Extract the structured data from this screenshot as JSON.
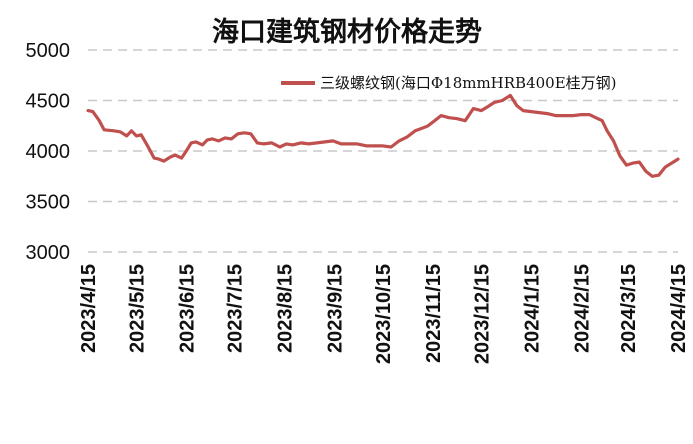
{
  "chart_data": {
    "type": "line",
    "title": "海口建筑钢材价格走势",
    "xlabel": "",
    "ylabel": "",
    "ylim": [
      3000,
      5000
    ],
    "yticks": [
      3000,
      3500,
      4000,
      4500,
      5000
    ],
    "xticks": [
      "2023/4/15",
      "2023/5/15",
      "2023/6/15",
      "2023/7/15",
      "2023/8/15",
      "2023/9/15",
      "2023/10/15",
      "2023/11/15",
      "2023/12/15",
      "2024/1/15",
      "2024/2/15",
      "2024/3/15",
      "2024/4/15"
    ],
    "grid": "horizontal-dashed",
    "legend_position": "top-right",
    "series": [
      {
        "name": "三级螺纹钢(海口Φ18mmHRB400E桂万钢)",
        "color": "#c0504d",
        "x": [
          "2023/4/15",
          "2023/4/18",
          "2023/4/22",
          "2023/4/25",
          "2023/5/1",
          "2023/5/5",
          "2023/5/9",
          "2023/5/12",
          "2023/5/15",
          "2023/5/18",
          "2023/5/22",
          "2023/5/26",
          "2023/5/29",
          "2023/6/1",
          "2023/6/5",
          "2023/6/8",
          "2023/6/12",
          "2023/6/15",
          "2023/6/18",
          "2023/6/21",
          "2023/6/25",
          "2023/6/28",
          "2023/7/1",
          "2023/7/5",
          "2023/7/9",
          "2023/7/13",
          "2023/7/17",
          "2023/7/21",
          "2023/7/25",
          "2023/7/29",
          "2023/8/2",
          "2023/8/7",
          "2023/8/12",
          "2023/8/16",
          "2023/8/20",
          "2023/8/25",
          "2023/8/30",
          "2023/9/4",
          "2023/9/9",
          "2023/9/14",
          "2023/9/19",
          "2023/9/24",
          "2023/9/29",
          "2023/10/5",
          "2023/10/10",
          "2023/10/15",
          "2023/10/20",
          "2023/10/25",
          "2023/10/30",
          "2023/11/4",
          "2023/11/9",
          "2023/11/12",
          "2023/11/16",
          "2023/11/20",
          "2023/11/25",
          "2023/11/30",
          "2023/12/5",
          "2023/12/10",
          "2023/12/15",
          "2023/12/19",
          "2023/12/23",
          "2023/12/28",
          "2024/1/2",
          "2024/1/6",
          "2024/1/10",
          "2024/1/15",
          "2024/1/20",
          "2024/1/25",
          "2024/1/30",
          "2024/2/5",
          "2024/2/10",
          "2024/2/15",
          "2024/2/20",
          "2024/2/24",
          "2024/2/28",
          "2024/3/2",
          "2024/3/6",
          "2024/3/10",
          "2024/3/14",
          "2024/3/18",
          "2024/3/22",
          "2024/3/26",
          "2024/3/30",
          "2024/4/3",
          "2024/4/7",
          "2024/4/11",
          "2024/4/15"
        ],
        "values": [
          4400,
          4390,
          4300,
          4210,
          4200,
          4190,
          4150,
          4200,
          4150,
          4160,
          4050,
          3930,
          3920,
          3900,
          3940,
          3960,
          3930,
          4000,
          4080,
          4090,
          4060,
          4110,
          4120,
          4100,
          4130,
          4120,
          4170,
          4180,
          4170,
          4080,
          4070,
          4080,
          4040,
          4070,
          4060,
          4080,
          4070,
          4080,
          4090,
          4100,
          4070,
          4070,
          4070,
          4050,
          4050,
          4050,
          4040,
          4100,
          4140,
          4200,
          4230,
          4250,
          4300,
          4350,
          4330,
          4320,
          4300,
          4420,
          4400,
          4440,
          4480,
          4500,
          4550,
          4450,
          4400,
          4390,
          4380,
          4370,
          4350,
          4350,
          4350,
          4360,
          4360,
          4330,
          4300,
          4200,
          4100,
          3950,
          3860,
          3880,
          3890,
          3800,
          3750,
          3760,
          3840,
          3880,
          3920
        ]
      }
    ]
  }
}
